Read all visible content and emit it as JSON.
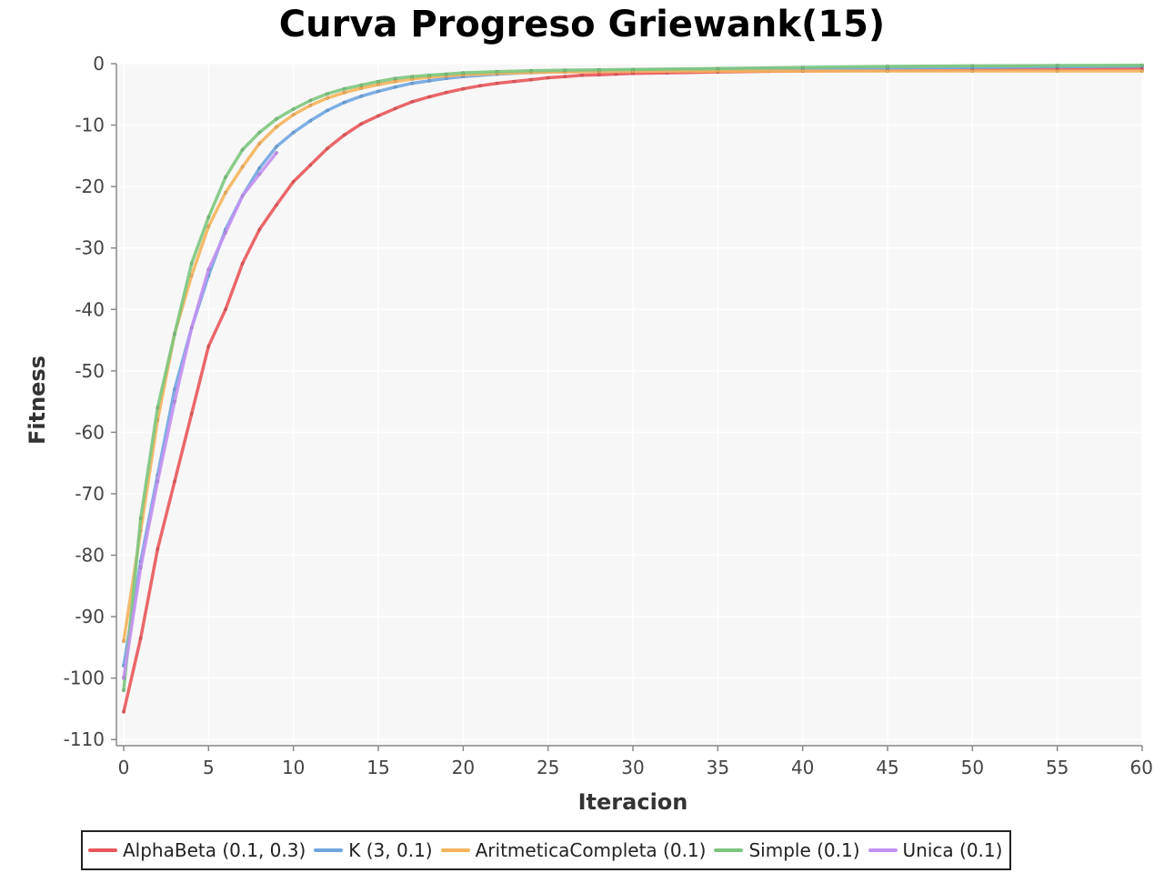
{
  "chart_data": {
    "type": "line",
    "title": "Curva Progreso Griewank(15)",
    "xlabel": "Iteracion",
    "ylabel": "Fitness",
    "xlim": [
      0,
      60
    ],
    "ylim": [
      -111,
      0
    ],
    "xticks": [
      "0",
      "5",
      "10",
      "15",
      "20",
      "25",
      "30",
      "35",
      "40",
      "45",
      "50",
      "55",
      "60"
    ],
    "yticks": [
      "0",
      "-10",
      "-20",
      "-30",
      "-40",
      "-50",
      "-60",
      "-70",
      "-80",
      "-90",
      "-100",
      "-110"
    ],
    "grid": true,
    "legend_position": "bottom",
    "series": [
      {
        "name": "AlphaBeta (0.1, 0.3)",
        "color": "#e8565a",
        "x": [
          0,
          1,
          2,
          3,
          4,
          5,
          6,
          7,
          8,
          9,
          10,
          11,
          12,
          13,
          14,
          15,
          16,
          17,
          18,
          19,
          20,
          21,
          22,
          23,
          24,
          25,
          26,
          27,
          28,
          29,
          30,
          32,
          35,
          38,
          40,
          45,
          50,
          55,
          60
        ],
        "y": [
          -105.5,
          -93.5,
          -79,
          -68,
          -57,
          -46,
          -40,
          -32.5,
          -27,
          -23,
          -19.2,
          -16.5,
          -13.8,
          -11.6,
          -9.8,
          -8.5,
          -7.3,
          -6.2,
          -5.4,
          -4.7,
          -4.1,
          -3.6,
          -3.2,
          -2.9,
          -2.6,
          -2.3,
          -2.1,
          -1.9,
          -1.8,
          -1.7,
          -1.6,
          -1.5,
          -1.35,
          -1.25,
          -1.2,
          -1.1,
          -1.0,
          -0.9,
          -0.85
        ]
      },
      {
        "name": "K (3, 0.1)",
        "color": "#6fa5e0",
        "x": [
          0,
          1,
          2,
          3,
          4,
          5,
          6,
          7,
          8,
          9,
          10,
          11,
          12,
          13,
          14,
          15,
          16,
          17,
          18,
          19,
          20,
          22,
          24,
          26,
          28,
          30,
          35,
          40,
          45,
          50,
          55,
          60
        ],
        "y": [
          -98,
          -81,
          -67,
          -53,
          -43,
          -34.5,
          -27,
          -21.5,
          -17,
          -13.5,
          -11.2,
          -9.3,
          -7.6,
          -6.3,
          -5.3,
          -4.5,
          -3.8,
          -3.2,
          -2.8,
          -2.4,
          -2.1,
          -1.7,
          -1.45,
          -1.3,
          -1.2,
          -1.1,
          -0.9,
          -0.8,
          -0.7,
          -0.6,
          -0.5,
          -0.4
        ]
      },
      {
        "name": "AritmeticaCompleta (0.1)",
        "color": "#f5b25c",
        "x": [
          0,
          1,
          2,
          3,
          4,
          5,
          6,
          7,
          8,
          9,
          10,
          11,
          12,
          13,
          14,
          15,
          16,
          17,
          18,
          19,
          20,
          22,
          24,
          26,
          28,
          30,
          35,
          40,
          45,
          50,
          55,
          60
        ],
        "y": [
          -94,
          -76,
          -58,
          -44,
          -34.5,
          -26.5,
          -21,
          -16.8,
          -13,
          -10.3,
          -8.3,
          -6.8,
          -5.6,
          -4.7,
          -4,
          -3.4,
          -2.9,
          -2.5,
          -2.2,
          -2,
          -1.8,
          -1.6,
          -1.45,
          -1.35,
          -1.3,
          -1.25,
          -1.2,
          -1.2,
          -1.2,
          -1.2,
          -1.2,
          -1.2
        ]
      },
      {
        "name": "Simple (0.1)",
        "color": "#7cc67e",
        "x": [
          0,
          1,
          2,
          3,
          4,
          5,
          6,
          7,
          8,
          9,
          10,
          11,
          12,
          13,
          14,
          15,
          16,
          17,
          18,
          19,
          20,
          22,
          24,
          26,
          28,
          30,
          35,
          40,
          45,
          50,
          55,
          60
        ],
        "y": [
          -102,
          -74,
          -56,
          -44,
          -32.5,
          -25,
          -18.5,
          -14,
          -11.2,
          -9,
          -7.4,
          -6,
          -4.9,
          -4.1,
          -3.5,
          -2.9,
          -2.4,
          -2.1,
          -1.9,
          -1.7,
          -1.5,
          -1.3,
          -1.15,
          -1.05,
          -1,
          -0.95,
          -0.8,
          -0.6,
          -0.45,
          -0.35,
          -0.3,
          -0.25
        ]
      },
      {
        "name": "Unica (0.1)",
        "color": "#c391f0",
        "x": [
          0,
          1,
          2,
          3,
          4,
          5,
          6,
          7,
          8,
          9
        ],
        "y": [
          -100,
          -82,
          -68,
          -55,
          -43,
          -33.5,
          -27.5,
          -21.5,
          -18,
          -14.5
        ]
      }
    ]
  }
}
